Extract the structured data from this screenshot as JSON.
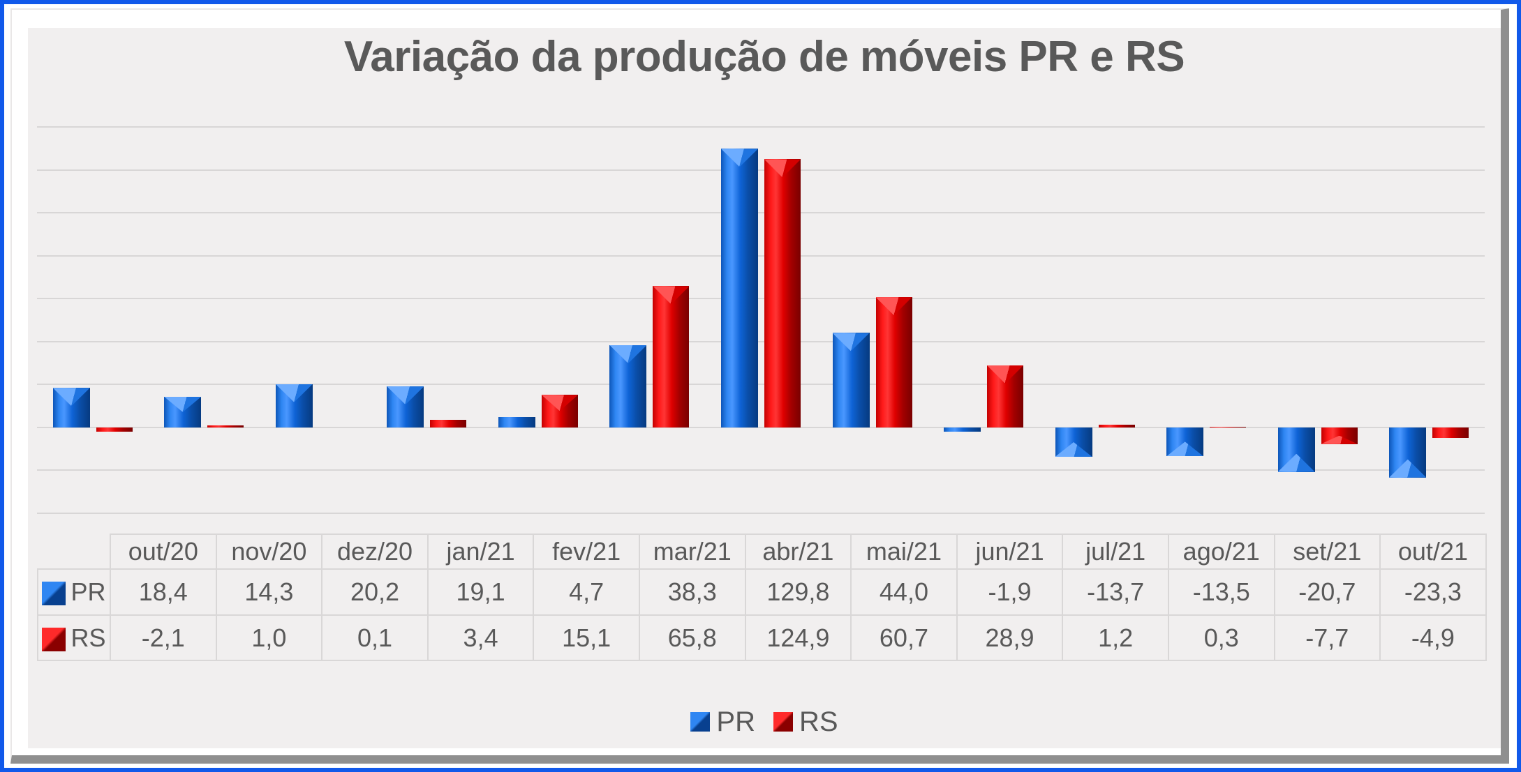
{
  "window": {
    "border_color": "#1159ea",
    "surface_color": "#f1efef"
  },
  "chart_data": {
    "type": "bar",
    "title": "Variação da produção de móveis PR e RS",
    "categories": [
      "out/20",
      "nov/20",
      "dez/20",
      "jan/21",
      "fev/21",
      "mar/21",
      "abr/21",
      "mai/21",
      "jun/21",
      "jul/21",
      "ago/21",
      "set/21",
      "out/21"
    ],
    "series": [
      {
        "name": "PR",
        "color": "#0b62d4",
        "values": [
          18.4,
          14.3,
          20.2,
          19.1,
          4.7,
          38.3,
          129.8,
          44.0,
          -1.9,
          -13.7,
          -13.5,
          -20.7,
          -23.3
        ],
        "display": [
          "18,4",
          "14,3",
          "20,2",
          "19,1",
          "4,7",
          "38,3",
          "129,8",
          "44,0",
          "-1,9",
          "-13,7",
          "-13,5",
          "-20,7",
          "-23,3"
        ]
      },
      {
        "name": "RS",
        "color": "#e00000",
        "values": [
          -2.1,
          1.0,
          0.1,
          3.4,
          15.1,
          65.8,
          124.9,
          60.7,
          28.9,
          1.2,
          0.3,
          -7.7,
          -4.9
        ],
        "display": [
          "-2,1",
          "1,0",
          "0,1",
          "3,4",
          "15,1",
          "65,8",
          "124,9",
          "60,7",
          "28,9",
          "1,2",
          "0,3",
          "-7,7",
          "-4,9"
        ]
      }
    ],
    "ylim": [
      -40,
      140
    ],
    "grid_step": 20,
    "y_axis_labels_visible": false,
    "grid": "horizontal",
    "legend_position": "bottom",
    "has_data_table": true
  }
}
